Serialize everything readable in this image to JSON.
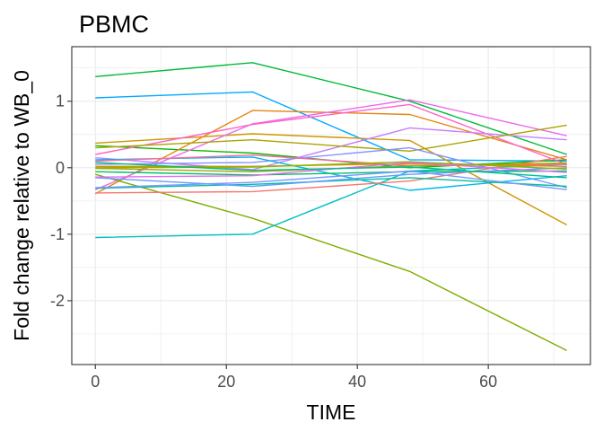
{
  "chart_data": {
    "type": "line",
    "title": "PBMC",
    "xlabel": "TIME",
    "ylabel": "Fold change relative to WB_0",
    "xlim": [
      -3.6,
      75.6
    ],
    "ylim": [
      -2.96,
      1.82
    ],
    "xticks": [
      0,
      20,
      40,
      60
    ],
    "yticks": [
      -2,
      -1,
      0,
      1
    ],
    "ytick_labels": [
      "-2",
      "-1",
      "0",
      "1"
    ],
    "grid": true,
    "legend": "none",
    "x": [
      0,
      24,
      48,
      72
    ],
    "series": [
      {
        "color": "#00ba38",
        "values": [
          1.37,
          1.58,
          1.0,
          0.2
        ]
      },
      {
        "color": "#00a9ff",
        "values": [
          1.05,
          1.14,
          0.12,
          0.1
        ]
      },
      {
        "color": "#cd9600",
        "values": [
          0.37,
          0.51,
          0.41,
          -0.86
        ]
      },
      {
        "color": "#0cb702",
        "values": [
          0.33,
          0.22,
          0.0,
          0.12
        ]
      },
      {
        "color": "#e68613",
        "values": [
          -0.39,
          0.86,
          0.8,
          0.12
        ]
      },
      {
        "color": "#ed68ed",
        "values": [
          -0.33,
          0.66,
          1.02,
          0.48
        ]
      },
      {
        "color": "#ff61cc",
        "values": [
          0.2,
          0.65,
          0.95,
          0.05
        ]
      },
      {
        "color": "#c77cff",
        "values": [
          0.15,
          -0.03,
          0.6,
          0.42
        ]
      },
      {
        "color": "#7cae00",
        "values": [
          -0.1,
          -0.76,
          -1.56,
          -2.75
        ]
      },
      {
        "color": "#00bfc4",
        "values": [
          -1.05,
          -1.0,
          -0.05,
          0.05
        ]
      },
      {
        "color": "#aba300",
        "values": [
          0.3,
          0.42,
          0.25,
          0.64
        ]
      },
      {
        "color": "#8494ff",
        "values": [
          0.05,
          0.08,
          0.3,
          -0.3
        ]
      },
      {
        "color": "#00b8e7",
        "values": [
          0.12,
          0.16,
          -0.34,
          -0.12
        ]
      },
      {
        "color": "#f8766d",
        "values": [
          -0.38,
          -0.36,
          -0.2,
          0.17
        ]
      },
      {
        "color": "#00c19a",
        "values": [
          -0.31,
          -0.25,
          -0.15,
          -0.28
        ]
      },
      {
        "color": "#ff68a1",
        "values": [
          0.1,
          0.19,
          0.03,
          0.05
        ]
      },
      {
        "color": "#de8c00",
        "values": [
          0.02,
          0.02,
          0.06,
          0.02
        ]
      },
      {
        "color": "#00be67",
        "values": [
          -0.06,
          -0.11,
          -0.06,
          -0.05
        ]
      },
      {
        "color": "#619cff",
        "values": [
          -0.15,
          -0.28,
          -0.1,
          0.0
        ]
      },
      {
        "color": "#7997ff",
        "values": [
          -0.3,
          -0.22,
          -0.05,
          -0.33
        ]
      },
      {
        "color": "#a3a500",
        "values": [
          -0.01,
          -0.06,
          0.03,
          0.07
        ]
      },
      {
        "color": "#8ab504",
        "values": [
          0.0,
          0.01,
          0.09,
          -0.02
        ]
      },
      {
        "color": "#e76bf3",
        "values": [
          -0.14,
          -0.12,
          0.08,
          -0.07
        ]
      },
      {
        "color": "#00c08b",
        "values": [
          0.08,
          -0.04,
          0.01,
          -0.15
        ]
      }
    ]
  }
}
